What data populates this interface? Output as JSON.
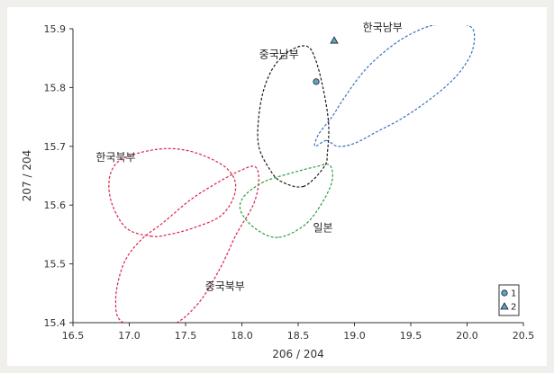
{
  "chart_data": {
    "type": "scatter",
    "title": "",
    "xlabel": "206 / 204",
    "ylabel": "207 / 204",
    "xlim": [
      16.5,
      20.5
    ],
    "ylim": [
      15.4,
      15.9
    ],
    "xticks": [
      "16.5",
      "17.0",
      "17.5",
      "18.0",
      "18.5",
      "19.0",
      "19.5",
      "20.0",
      "20.5"
    ],
    "yticks": [
      "15.4",
      "15.5",
      "15.6",
      "15.7",
      "15.8",
      "15.9"
    ],
    "grid": false,
    "legend_position": "bottom-right",
    "series": [
      {
        "name": "1",
        "marker": "circle",
        "color": "#5ba3c9",
        "points": [
          [
            18.66,
            15.81
          ]
        ]
      },
      {
        "name": "2",
        "marker": "triangle",
        "color": "#5ba3c9",
        "points": [
          [
            18.82,
            15.88
          ]
        ]
      }
    ],
    "regions": [
      {
        "label": "한국남부",
        "color": "#3a6fbf",
        "label_at": [
          19.25,
          15.896
        ],
        "outline": [
          [
            18.75,
            15.71
          ],
          [
            18.65,
            15.7
          ],
          [
            18.68,
            15.72
          ],
          [
            18.8,
            15.75
          ],
          [
            18.9,
            15.78
          ],
          [
            19.05,
            15.82
          ],
          [
            19.2,
            15.85
          ],
          [
            19.4,
            15.88
          ],
          [
            19.6,
            15.9
          ],
          [
            19.75,
            15.908
          ],
          [
            19.9,
            15.91
          ],
          [
            20.05,
            15.9
          ],
          [
            20.05,
            15.865
          ],
          [
            19.95,
            15.83
          ],
          [
            19.8,
            15.8
          ],
          [
            19.6,
            15.77
          ],
          [
            19.4,
            15.745
          ],
          [
            19.2,
            15.725
          ],
          [
            19.0,
            15.705
          ],
          [
            18.85,
            15.7
          ]
        ]
      },
      {
        "label": "중국남부",
        "color": "#1a1a1a",
        "label_at": [
          18.33,
          15.85
        ],
        "outline": [
          [
            18.55,
            15.632
          ],
          [
            18.35,
            15.64
          ],
          [
            18.25,
            15.66
          ],
          [
            18.15,
            15.7
          ],
          [
            18.15,
            15.75
          ],
          [
            18.2,
            15.8
          ],
          [
            18.3,
            15.84
          ],
          [
            18.45,
            15.865
          ],
          [
            18.58,
            15.87
          ],
          [
            18.65,
            15.85
          ],
          [
            18.72,
            15.8
          ],
          [
            18.77,
            15.74
          ],
          [
            18.76,
            15.69
          ],
          [
            18.73,
            15.665
          ]
        ]
      },
      {
        "label": "한국북부",
        "color": "#d8244a",
        "label_at": [
          16.88,
          15.675
        ],
        "outline": [
          [
            17.2,
            15.547
          ],
          [
            16.98,
            15.56
          ],
          [
            16.85,
            15.6
          ],
          [
            16.82,
            15.64
          ],
          [
            16.88,
            15.67
          ],
          [
            17.02,
            15.685
          ],
          [
            17.25,
            15.695
          ],
          [
            17.45,
            15.695
          ],
          [
            17.65,
            15.685
          ],
          [
            17.85,
            15.665
          ],
          [
            17.94,
            15.64
          ],
          [
            17.92,
            15.61
          ],
          [
            17.8,
            15.58
          ],
          [
            17.55,
            15.56
          ],
          [
            17.35,
            15.55
          ]
        ]
      },
      {
        "label": "중국북부",
        "color": "#d8244a",
        "label_at": [
          17.85,
          15.456
        ],
        "outline": [
          [
            16.95,
            15.4
          ],
          [
            16.88,
            15.44
          ],
          [
            16.95,
            15.5
          ],
          [
            17.1,
            15.54
          ],
          [
            17.3,
            15.57
          ],
          [
            17.55,
            15.61
          ],
          [
            17.8,
            15.64
          ],
          [
            18.0,
            15.66
          ],
          [
            18.12,
            15.665
          ],
          [
            18.15,
            15.64
          ],
          [
            18.1,
            15.6
          ],
          [
            17.95,
            15.55
          ],
          [
            17.8,
            15.49
          ],
          [
            17.6,
            15.43
          ],
          [
            17.35,
            15.395
          ]
        ]
      },
      {
        "label": "일본",
        "color": "#2e9a3e",
        "label_at": [
          18.72,
          15.555
        ],
        "outline": [
          [
            18.32,
            15.545
          ],
          [
            18.12,
            15.56
          ],
          [
            17.99,
            15.59
          ],
          [
            18.02,
            15.615
          ],
          [
            18.2,
            15.64
          ],
          [
            18.45,
            15.655
          ],
          [
            18.65,
            15.665
          ],
          [
            18.78,
            15.668
          ],
          [
            18.8,
            15.64
          ],
          [
            18.7,
            15.6
          ],
          [
            18.55,
            15.565
          ]
        ]
      }
    ]
  }
}
